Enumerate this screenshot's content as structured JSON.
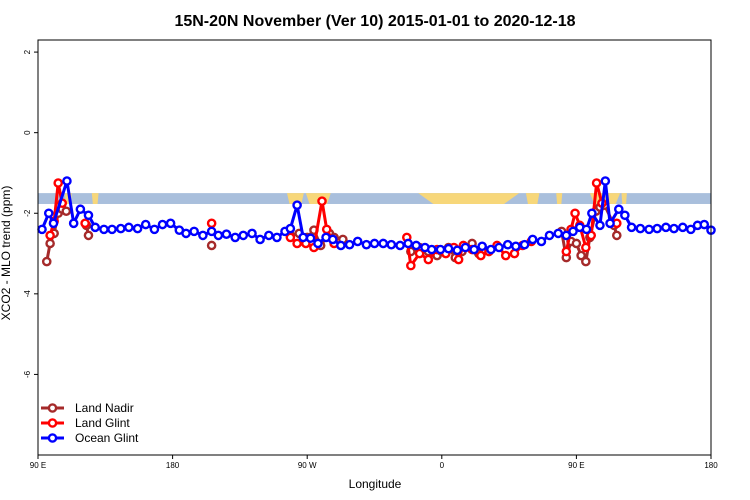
{
  "chart_data": {
    "type": "line",
    "title": "15N-20N November (Ver 10)   2015-01-01 to 2020-12-18",
    "xlabel": "Longitude",
    "ylabel": "XCO2 - MLO trend (ppm)",
    "xlim": [
      0,
      100
    ],
    "ylim": [
      -8,
      2.3
    ],
    "x_ticks": [
      {
        "value": 0,
        "label": "90 E"
      },
      {
        "value": 20,
        "label": "180"
      },
      {
        "value": 40,
        "label": "90 W"
      },
      {
        "value": 60,
        "label": "0"
      },
      {
        "value": 80,
        "label": "90 E"
      },
      {
        "value": 100,
        "label": "180"
      }
    ],
    "y_ticks": [
      {
        "value": 2,
        "label": "2"
      },
      {
        "value": 0,
        "label": "0"
      },
      {
        "value": -2,
        "label": "-2"
      },
      {
        "value": -4,
        "label": "-4"
      },
      {
        "value": -6,
        "label": "-6"
      }
    ],
    "band": {
      "ymin": -1.77,
      "ymax": -1.5,
      "color": "#a9bfdc",
      "land_color": "#f7d77a"
    },
    "legend_position": "bottom-left",
    "series": [
      {
        "name": "Land Nadir",
        "color": "#a52a2a",
        "segments": [
          [
            [
              1.3,
              -3.2
            ],
            [
              1.8,
              -2.75
            ],
            [
              2.4,
              -2.5
            ],
            [
              3.0,
              -2.0
            ],
            [
              3.6,
              -1.9
            ],
            [
              4.2,
              -1.95
            ]
          ],
          [
            [
              7.2,
              -2.3
            ],
            [
              7.5,
              -2.55
            ]
          ],
          [
            [
              25.8,
              -2.8
            ]
          ],
          [
            [
              37.5,
              -2.55
            ],
            [
              38.8,
              -2.5
            ],
            [
              40.0,
              -2.6
            ],
            [
              41.0,
              -2.42
            ],
            [
              42.0,
              -2.8
            ],
            [
              43.3,
              -2.5
            ],
            [
              44.0,
              -2.6
            ],
            [
              45.3,
              -2.65
            ]
          ],
          [
            [
              55.4,
              -2.95
            ],
            [
              56.7,
              -2.85
            ],
            [
              58.0,
              -2.95
            ],
            [
              59.3,
              -3.05
            ],
            [
              60.0,
              -2.95
            ],
            [
              61.0,
              -2.85
            ],
            [
              62.0,
              -3.1
            ],
            [
              63.0,
              -2.95
            ],
            [
              64.5,
              -2.75
            ],
            [
              65.5,
              -3.0
            ]
          ],
          [
            [
              77.8,
              -2.45
            ],
            [
              78.5,
              -3.1
            ],
            [
              79.2,
              -2.7
            ],
            [
              80.0,
              -2.75
            ],
            [
              80.7,
              -3.05
            ],
            [
              81.4,
              -3.2
            ],
            [
              82.0,
              -2.6
            ],
            [
              82.9,
              -1.95
            ],
            [
              83.5,
              -1.85
            ],
            [
              84.2,
              -1.8
            ],
            [
              85.6,
              -2.3
            ],
            [
              86.0,
              -2.55
            ]
          ]
        ]
      },
      {
        "name": "Land Glint",
        "color": "#ff0000",
        "segments": [
          [
            [
              1.8,
              -2.55
            ],
            [
              2.4,
              -2.2
            ],
            [
              3.0,
              -1.25
            ],
            [
              3.6,
              -1.75
            ]
          ],
          [
            [
              7.0,
              -2.25
            ]
          ],
          [
            [
              25.8,
              -2.25
            ]
          ],
          [
            [
              37.5,
              -2.6
            ],
            [
              38.5,
              -2.75
            ],
            [
              39.8,
              -2.75
            ],
            [
              41.0,
              -2.85
            ],
            [
              42.2,
              -1.7
            ],
            [
              42.9,
              -2.4
            ],
            [
              44.0,
              -2.75
            ]
          ],
          [
            [
              54.8,
              -2.6
            ],
            [
              55.4,
              -3.3
            ],
            [
              56.7,
              -3.0
            ],
            [
              58.0,
              -3.15
            ],
            [
              59.3,
              -2.9
            ],
            [
              60.6,
              -3.0
            ],
            [
              61.8,
              -2.85
            ],
            [
              62.5,
              -3.15
            ],
            [
              63.2,
              -2.8
            ],
            [
              64.5,
              -2.9
            ],
            [
              65.8,
              -3.05
            ],
            [
              67.0,
              -2.95
            ],
            [
              68.2,
              -2.8
            ],
            [
              69.5,
              -3.05
            ],
            [
              70.8,
              -3.0
            ],
            [
              72.0,
              -2.8
            ],
            [
              73.3,
              -2.7
            ]
          ],
          [
            [
              78.5,
              -2.95
            ],
            [
              79.2,
              -2.4
            ],
            [
              79.8,
              -2.0
            ],
            [
              80.5,
              -2.3
            ],
            [
              81.4,
              -2.85
            ],
            [
              82.2,
              -2.55
            ],
            [
              83.0,
              -1.25
            ],
            [
              83.8,
              -1.75
            ]
          ],
          [
            [
              86.0,
              -2.25
            ]
          ]
        ]
      },
      {
        "name": "Ocean Glint",
        "color": "#0000ff",
        "segments": [
          [
            [
              0.6,
              -2.4
            ],
            [
              1.6,
              -2.0
            ],
            [
              2.3,
              -2.25
            ],
            [
              4.3,
              -1.2
            ],
            [
              5.3,
              -2.25
            ],
            [
              6.3,
              -1.9
            ],
            [
              7.5,
              -2.05
            ],
            [
              8.5,
              -2.35
            ],
            [
              9.8,
              -2.4
            ],
            [
              11.0,
              -2.4
            ],
            [
              12.3,
              -2.38
            ],
            [
              13.5,
              -2.35
            ],
            [
              14.8,
              -2.38
            ],
            [
              16.0,
              -2.28
            ],
            [
              17.3,
              -2.4
            ],
            [
              18.5,
              -2.28
            ],
            [
              19.7,
              -2.25
            ],
            [
              21.0,
              -2.42
            ],
            [
              22.0,
              -2.5
            ],
            [
              23.2,
              -2.45
            ],
            [
              24.5,
              -2.55
            ],
            [
              25.8,
              -2.45
            ],
            [
              26.8,
              -2.55
            ],
            [
              28.0,
              -2.52
            ],
            [
              29.3,
              -2.6
            ],
            [
              30.5,
              -2.55
            ],
            [
              31.8,
              -2.5
            ],
            [
              33.0,
              -2.65
            ],
            [
              34.3,
              -2.55
            ],
            [
              35.5,
              -2.6
            ],
            [
              36.7,
              -2.45
            ],
            [
              37.5,
              -2.38
            ],
            [
              38.5,
              -1.8
            ],
            [
              39.4,
              -2.6
            ],
            [
              40.5,
              -2.62
            ],
            [
              41.6,
              -2.75
            ],
            [
              42.8,
              -2.6
            ],
            [
              43.8,
              -2.65
            ],
            [
              45.0,
              -2.8
            ],
            [
              46.3,
              -2.78
            ],
            [
              47.5,
              -2.7
            ],
            [
              48.8,
              -2.78
            ],
            [
              50.0,
              -2.75
            ],
            [
              51.3,
              -2.75
            ],
            [
              52.5,
              -2.78
            ],
            [
              53.8,
              -2.8
            ],
            [
              55.0,
              -2.75
            ],
            [
              56.2,
              -2.8
            ],
            [
              57.5,
              -2.85
            ],
            [
              58.5,
              -2.9
            ],
            [
              59.8,
              -2.9
            ],
            [
              61.0,
              -2.88
            ],
            [
              62.3,
              -2.92
            ],
            [
              63.5,
              -2.85
            ],
            [
              64.8,
              -2.9
            ],
            [
              66.0,
              -2.82
            ],
            [
              67.3,
              -2.9
            ],
            [
              68.5,
              -2.85
            ],
            [
              69.8,
              -2.78
            ],
            [
              71.0,
              -2.82
            ],
            [
              72.3,
              -2.78
            ],
            [
              73.5,
              -2.65
            ],
            [
              74.8,
              -2.7
            ],
            [
              76.0,
              -2.55
            ],
            [
              77.3,
              -2.5
            ],
            [
              78.5,
              -2.55
            ],
            [
              79.5,
              -2.45
            ],
            [
              80.5,
              -2.35
            ],
            [
              81.5,
              -2.4
            ],
            [
              82.3,
              -2.0
            ],
            [
              83.5,
              -2.3
            ],
            [
              84.3,
              -1.2
            ],
            [
              85.0,
              -2.25
            ],
            [
              86.3,
              -1.9
            ],
            [
              87.2,
              -2.05
            ],
            [
              88.2,
              -2.35
            ],
            [
              89.5,
              -2.38
            ],
            [
              90.8,
              -2.4
            ],
            [
              92.0,
              -2.38
            ],
            [
              93.3,
              -2.35
            ],
            [
              94.5,
              -2.38
            ],
            [
              95.8,
              -2.35
            ],
            [
              97.0,
              -2.4
            ],
            [
              98.0,
              -2.3
            ],
            [
              99.0,
              -2.28
            ],
            [
              100.0,
              -2.42
            ]
          ]
        ]
      }
    ]
  }
}
